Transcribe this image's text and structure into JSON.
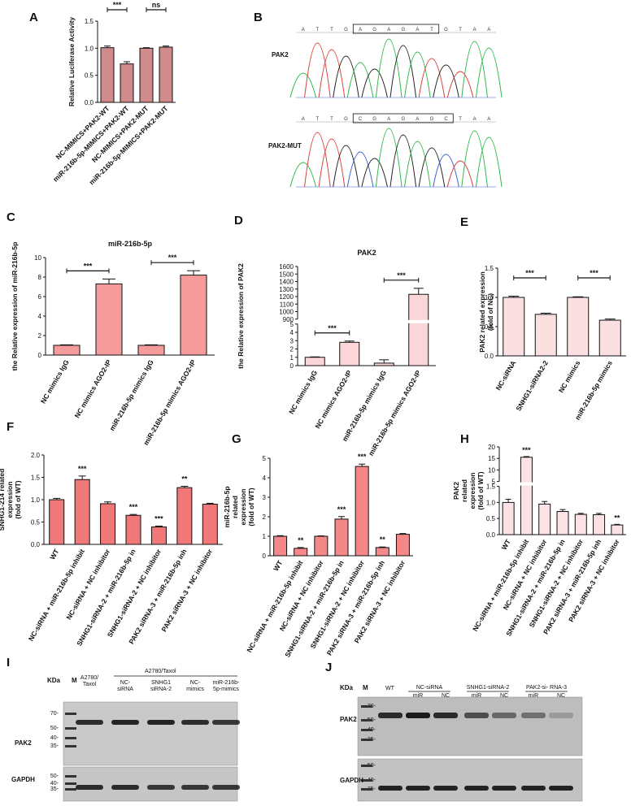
{
  "panel_letters": [
    "A",
    "B",
    "C",
    "D",
    "E",
    "F",
    "G",
    "H",
    "I",
    "J"
  ],
  "colors": {
    "bar_A": "#cf8a8c",
    "bar_C": "#f59b9b",
    "bar_D": "#fbd6d8",
    "bar_E": "#fbe0e2",
    "bar_F": "#f07878",
    "bar_G": "#f48888",
    "bar_H": "#fce2e4"
  },
  "chart_data": [
    {
      "panel": "A",
      "type": "bar",
      "title": "",
      "ylabel": "Relative Luciferase Activity",
      "categories": [
        "NC-MIMICS+PAK2-WT",
        "miR-216b-5p-MIMICS+PAK2-WT",
        "NC-MIMICS+PAK2-MUT",
        "miR-216b-5p-MIMICS+PAK2-MUT"
      ],
      "values": [
        1.01,
        0.71,
        1.0,
        1.02
      ],
      "errors": [
        0.03,
        0.04,
        0.01,
        0.02
      ],
      "ylim": [
        0,
        1.5
      ],
      "yticks": [
        "0.0",
        "0.5",
        "1.0",
        "1.5"
      ],
      "annotations": [
        {
          "from": 0,
          "to": 1,
          "text": "***"
        },
        {
          "from": 2,
          "to": 3,
          "text": "ns"
        }
      ]
    },
    {
      "panel": "C",
      "type": "bar",
      "title": "miR-216b-5p",
      "ylabel": "the Relative expression of miR-216b-5p",
      "categories": [
        "NC mimics IgG",
        "NC mimics AGO2-IP",
        "miR-216b-5p mimics IgG",
        "miR-216b-5p mimics AGO2-IP"
      ],
      "values": [
        1.0,
        7.3,
        1.0,
        8.2
      ],
      "errors": [
        0.05,
        0.5,
        0.05,
        0.45
      ],
      "ylim": [
        0,
        10
      ],
      "yticks": [
        "0",
        "2",
        "4",
        "6",
        "8",
        "10"
      ],
      "annotations": [
        {
          "from": 0,
          "to": 1,
          "text": "***"
        },
        {
          "from": 2,
          "to": 3,
          "text": "***"
        }
      ]
    },
    {
      "panel": "D",
      "type": "bar",
      "title": "PAK2",
      "ylabel": "the Relative expression of PAK2",
      "categories": [
        "NC mimics IgG",
        "NC mimics AGO2-IP",
        "miR-216b-5p mimics IgG",
        "miR-216b-5p mimics AGO2-IP"
      ],
      "values": [
        1.0,
        2.8,
        0.3,
        1230
      ],
      "errors": [
        0.05,
        0.15,
        0.4,
        80
      ],
      "broken_axis": {
        "lower": [
          0,
          5
        ],
        "upper": [
          900,
          1600
        ]
      },
      "yticks_lower": [
        "0",
        "1",
        "2",
        "3",
        "4",
        "5"
      ],
      "yticks_upper": [
        "900",
        "1000",
        "1100",
        "1200",
        "1300",
        "1400",
        "1500",
        "1600"
      ],
      "annotations": [
        {
          "from": 0,
          "to": 1,
          "text": "***"
        },
        {
          "from": 2,
          "to": 3,
          "text": "***"
        }
      ]
    },
    {
      "panel": "E",
      "type": "bar",
      "title": "",
      "ylabel": "PAK2 related expression (fold of NC)",
      "categories": [
        "NC-siRNA",
        "SNHG1-siRNA2-2",
        "NC mimics",
        "miR-216b-5p mimics"
      ],
      "values": [
        1.0,
        0.71,
        1.0,
        0.61
      ],
      "errors": [
        0.02,
        0.02,
        0.01,
        0.02
      ],
      "ylim": [
        0,
        1.5
      ],
      "yticks": [
        "0.0",
        "0.5",
        "1.0",
        "1.5"
      ],
      "annotations": [
        {
          "from": 0,
          "to": 1,
          "text": "***"
        },
        {
          "from": 2,
          "to": 3,
          "text": "***"
        }
      ]
    },
    {
      "panel": "F",
      "type": "bar",
      "title": "",
      "ylabel": "SNHG1-214 related expression (fold of WT)",
      "categories": [
        "WT",
        "NC-siRNA + miR-216b-5p inhibit",
        "NC-siRNA + NC inhibitor",
        "SNHG1-siRNA-2 + miR-216b-5p in",
        "SNHG1-siRNA-2 + NC inhibitor",
        "PAK2 siRNA-3 + miR-216b-5p inh",
        "PAK2 siRNA-3 + NC inhibitor"
      ],
      "values": [
        1.0,
        1.45,
        0.91,
        0.65,
        0.39,
        1.27,
        0.9
      ],
      "errors": [
        0.03,
        0.08,
        0.04,
        0.02,
        0.02,
        0.03,
        0.02
      ],
      "ylim": [
        0,
        2.0
      ],
      "yticks": [
        "0.0",
        "0.5",
        "1.0",
        "1.5",
        "2.0"
      ],
      "stars": [
        "",
        "***",
        "",
        "***",
        "***",
        "**",
        ""
      ]
    },
    {
      "panel": "G",
      "type": "bar",
      "title": "",
      "ylabel": "miR-216b-5p related expression (fold of WT)",
      "categories": [
        "WT",
        "NC-siRNA + miR-216b-5p inhibit",
        "NC-siRNA + NC inhibitor",
        "SNHG1-siRNA-2 + miR-216b-5p in",
        "SNHG1-siRNA-2 + NC inhibitor",
        "PAK2 siRNA-3 + miR-216b-5p inh",
        "PAK2 siRNA-3 + NC inhibitor"
      ],
      "values": [
        1.0,
        0.38,
        1.0,
        1.88,
        4.58,
        0.42,
        1.1
      ],
      "errors": [
        0.03,
        0.04,
        0.02,
        0.13,
        0.12,
        0.03,
        0.04
      ],
      "ylim": [
        0,
        5
      ],
      "yticks": [
        "0",
        "1",
        "2",
        "3",
        "4",
        "5"
      ],
      "stars": [
        "",
        "**",
        "",
        "***",
        "***",
        "**",
        ""
      ]
    },
    {
      "panel": "H",
      "type": "bar",
      "title": "",
      "ylabel": "PAK2 related expression (fold of WT)",
      "categories": [
        "WT",
        "NC-siRNA + miR-216b-5p inhibit",
        "NC-siRNA + NC inhibitor",
        "SNHG1-siRNA-2 + miR-216b-5p in",
        "SNHG1-siRNA-2 + NC inhibitor",
        "PAK2 siRNA-3 + miR-216b-5p inh",
        "PAK2 siRNA-3 + NC inhibitor"
      ],
      "values": [
        1.0,
        15.5,
        0.95,
        0.72,
        0.63,
        0.62,
        0.3
      ],
      "errors": [
        0.1,
        0.3,
        0.08,
        0.06,
        0.03,
        0.04,
        0.02
      ],
      "broken_axis": {
        "lower": [
          0,
          1.5
        ],
        "upper": [
          5,
          20
        ]
      },
      "yticks_lower": [
        "0.0",
        "0.5",
        "1.0",
        "1.5"
      ],
      "yticks_upper": [
        "5",
        "10",
        "15",
        "20"
      ],
      "stars": [
        "",
        "***",
        "",
        "",
        "",
        "",
        "**"
      ]
    }
  ],
  "panel_B": {
    "seq_wt_label": "PAK2",
    "seq_mut_label": "PAK2-MUT",
    "seq_wt_bases": "ATTGAGAGATGTAA",
    "seq_mut_bases": "ATTGCGAGAGCTAA"
  },
  "panel_I": {
    "kda_label": "KDa",
    "lane_label_M": "M",
    "lane_headers": [
      "A2780/ Taxol",
      "NC- siRNA",
      "SNHG1 siRNA-2",
      "NC- mimics",
      "miR-216b- 5p-mimics"
    ],
    "group_header": "A2780/Taxol",
    "top_markers": [
      "70-",
      "50-",
      "40-",
      "35-"
    ],
    "bottom_markers": [
      "50-",
      "40-",
      "35-"
    ],
    "row_labels": [
      "PAK2",
      "GAPDH"
    ],
    "pak2_intensities": [
      0.85,
      0.9,
      0.9,
      0.85,
      0.8
    ],
    "gapdh_intensities": [
      0.85,
      0.85,
      0.8,
      0.8,
      0.8
    ]
  },
  "panel_J": {
    "kda_label": "KDa",
    "lane_label_M": "M",
    "wt_label": "WT",
    "group_headers": [
      "NC-siRNA",
      "SNHG1-siRNA-2",
      "PAK2-si- RNA-3"
    ],
    "sub_labels": [
      "miR",
      "NC",
      "miR",
      "NC",
      "miR",
      "NC"
    ],
    "top_markers": [
      "70-",
      "50-",
      "40-",
      "35-"
    ],
    "bottom_markers": [
      "50-",
      "40-",
      "35-"
    ],
    "row_labels": [
      "PAK2",
      "GAPDH"
    ],
    "pak2_intensities": [
      0.85,
      0.95,
      0.85,
      0.65,
      0.5,
      0.45,
      0.2
    ],
    "gapdh_intensities": [
      0.9,
      0.9,
      0.9,
      0.9,
      0.9,
      0.9,
      0.9
    ]
  }
}
